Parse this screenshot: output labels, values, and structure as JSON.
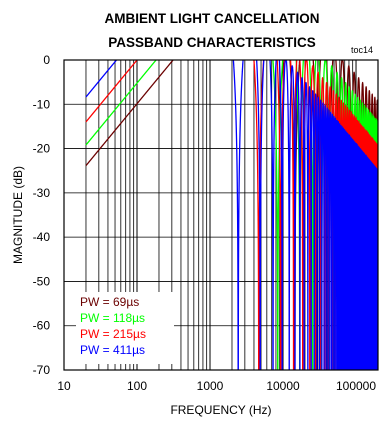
{
  "chart_data": {
    "type": "line",
    "title_line1": "AMBIENT LIGHT CANCELLATION",
    "title_line2": "PASSBAND CHARACTERISTICS",
    "tag": "toc14",
    "xlabel": "FREQUENCY (Hz)",
    "ylabel": "MAGNITUDE (dB)",
    "x_scale": "log",
    "xlim": [
      10,
      200000
    ],
    "ylim": [
      -70,
      0
    ],
    "x_ticks": [
      "10",
      "100",
      "1000",
      "10000",
      "100000"
    ],
    "y_ticks": [
      "0",
      "-10",
      "-20",
      "-30",
      "-40",
      "-50",
      "-60",
      "-70"
    ],
    "grid": true,
    "legend_position": "bottom-left",
    "series": [
      {
        "name": "PW =  69µs",
        "pw_us": 69,
        "color": "#6b0000",
        "f_start_hz": 20
      },
      {
        "name": "PW = 118µs",
        "pw_us": 118,
        "color": "#00ff00",
        "f_start_hz": 20
      },
      {
        "name": "PW = 215µs",
        "pw_us": 215,
        "color": "#ff0000",
        "f_start_hz": 20
      },
      {
        "name": "PW = 411µs",
        "pw_us": 411,
        "color": "#0000ff",
        "f_start_hz": 20
      }
    ]
  }
}
